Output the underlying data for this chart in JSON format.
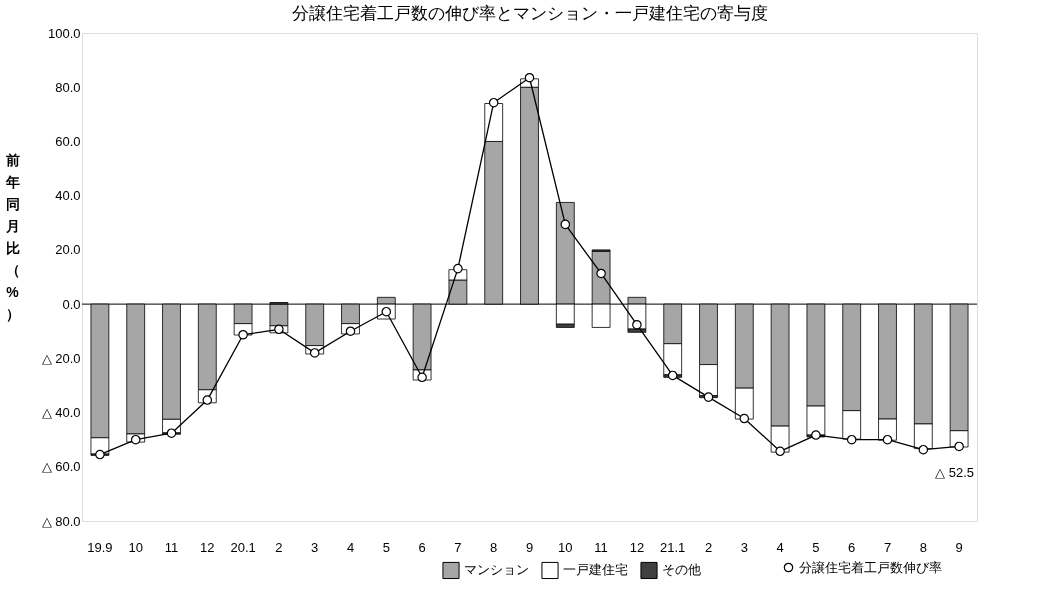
{
  "chart_data": {
    "type": "bar",
    "title": "分譲住宅着工戸数の伸び率とマンション・一戸建住宅の寄与度",
    "ylabel": "前年同月比（%）",
    "categories": [
      "19.9",
      "10",
      "11",
      "12",
      "20.1",
      "2",
      "3",
      "4",
      "5",
      "6",
      "7",
      "8",
      "9",
      "10",
      "11",
      "12",
      "21.1",
      "2",
      "3",
      "4",
      "5",
      "6",
      "7",
      "8",
      "9"
    ],
    "stacked": true,
    "series": [
      {
        "name": "マンション",
        "color": "#a6a6a6",
        "values": [
          -49.3,
          -47.9,
          -42.5,
          -31.6,
          -7.2,
          -8.0,
          -15.3,
          -7.2,
          2.5,
          -24.3,
          8.9,
          60.0,
          80.0,
          37.5,
          19.5,
          2.5,
          -14.6,
          -22.3,
          -31.0,
          -45.0,
          -37.6,
          -39.3,
          -42.4,
          -44.2,
          -46.7
        ]
      },
      {
        "name": "一戸建住宅",
        "color": "#ffffff",
        "values": [
          -6.0,
          -3.0,
          -5.0,
          -4.8,
          -4.2,
          -2.6,
          -3.1,
          -3.8,
          -5.5,
          -3.7,
          3.8,
          14.0,
          3.1,
          -7.4,
          -8.6,
          -9.2,
          -11.5,
          -11.5,
          -11.4,
          -9.6,
          -10.7,
          -10.5,
          -7.8,
          -9.1,
          -6.0
        ]
      },
      {
        "name": "その他",
        "color": "#404040",
        "values": [
          -0.5,
          null,
          -0.5,
          null,
          null,
          0.6,
          null,
          null,
          null,
          null,
          null,
          null,
          null,
          -1.2,
          0.5,
          -1.2,
          -0.9,
          -0.7,
          null,
          null,
          -0.7,
          null,
          null,
          null,
          null
        ]
      },
      {
        "name": "分譲住宅着工戸数伸び率",
        "type": "line",
        "color": "#000000",
        "marker": "circle",
        "values": [
          -55.5,
          -50.0,
          -47.6,
          -35.4,
          -11.3,
          -9.3,
          -18.0,
          -10.0,
          -2.8,
          -27.0,
          13.1,
          74.3,
          83.5,
          29.4,
          11.3,
          -7.6,
          -26.3,
          -34.3,
          -42.2,
          -54.3,
          -48.3,
          -50.0,
          -50.0,
          -53.7,
          -52.5
        ]
      }
    ],
    "ylim": [
      -80,
      100
    ],
    "yticks": [
      {
        "value": -80,
        "label": "△ 80.0"
      },
      {
        "value": -60,
        "label": "△ 60.0"
      },
      {
        "value": -40,
        "label": "△ 40.0"
      },
      {
        "value": -20,
        "label": "△ 20.0"
      },
      {
        "value": 0,
        "label": "0.0"
      },
      {
        "value": 20,
        "label": "20.0"
      },
      {
        "value": 40,
        "label": "40.0"
      },
      {
        "value": 60,
        "label": "60.0"
      },
      {
        "value": 80,
        "label": "80.0"
      },
      {
        "value": 100,
        "label": "100.0"
      }
    ],
    "ref_lines": [
      {
        "axis": "y",
        "value": 0,
        "color": "#000000"
      }
    ],
    "annotations": [
      "△ 52.5"
    ],
    "grid": false,
    "legend": "bottom right"
  }
}
